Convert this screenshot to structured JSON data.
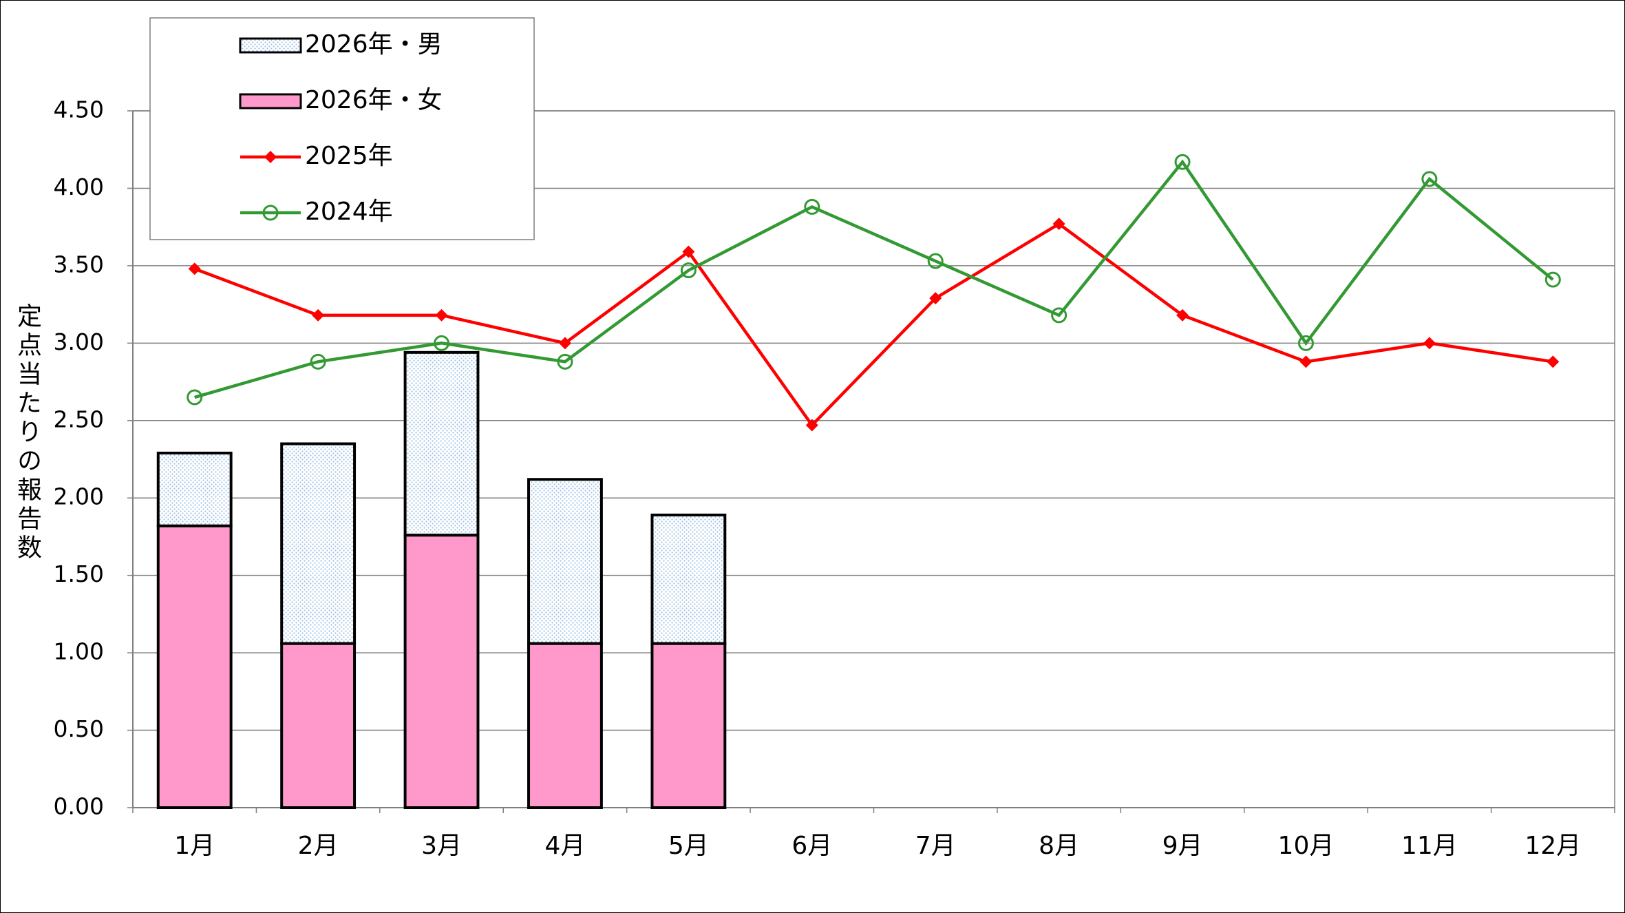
{
  "chart_data": {
    "type": "bar",
    "stacked": true,
    "y_label": "定点当たりの報告数",
    "categories": [
      "1月",
      "2月",
      "3月",
      "4月",
      "5月",
      "6月",
      "7月",
      "8月",
      "9月",
      "10月",
      "11月",
      "12月"
    ],
    "ylim": [
      0,
      4.5
    ],
    "yticks": [
      {
        "value": 0,
        "label": "0.00"
      },
      {
        "value": 0.5,
        "label": "0.50"
      },
      {
        "value": 1,
        "label": "1.00"
      },
      {
        "value": 1.5,
        "label": "1.50"
      },
      {
        "value": 2,
        "label": "2.00"
      },
      {
        "value": 2.5,
        "label": "2.50"
      },
      {
        "value": 3,
        "label": "3.00"
      },
      {
        "value": 3.5,
        "label": "3.50"
      },
      {
        "value": 4,
        "label": "4.00"
      },
      {
        "value": 4.5,
        "label": "4.50"
      }
    ],
    "grid": true,
    "legend": "top-left",
    "series": [
      {
        "name": "2026年・男",
        "type": "bar",
        "color": "#d6e6f5",
        "values": [
          0.47,
          1.29,
          1.18,
          1.06,
          0.83,
          null,
          null,
          null,
          null,
          null,
          null,
          null
        ]
      },
      {
        "name": "2026年・女",
        "type": "bar",
        "color": "#ff99cc",
        "values": [
          1.82,
          1.06,
          1.76,
          1.06,
          1.06,
          null,
          null,
          null,
          null,
          null,
          null,
          null
        ]
      },
      {
        "name": "2025年",
        "type": "line",
        "marker": "diamond",
        "color": "#ff0000",
        "values": [
          3.48,
          3.18,
          3.18,
          3.0,
          3.59,
          2.47,
          3.29,
          3.77,
          3.18,
          2.88,
          3.0,
          2.88
        ]
      },
      {
        "name": "2024年",
        "type": "line",
        "marker": "circle",
        "color": "#339933",
        "values": [
          2.65,
          2.88,
          3.0,
          2.88,
          3.47,
          3.88,
          3.53,
          3.18,
          4.17,
          3.0,
          4.06,
          3.41
        ]
      }
    ]
  }
}
